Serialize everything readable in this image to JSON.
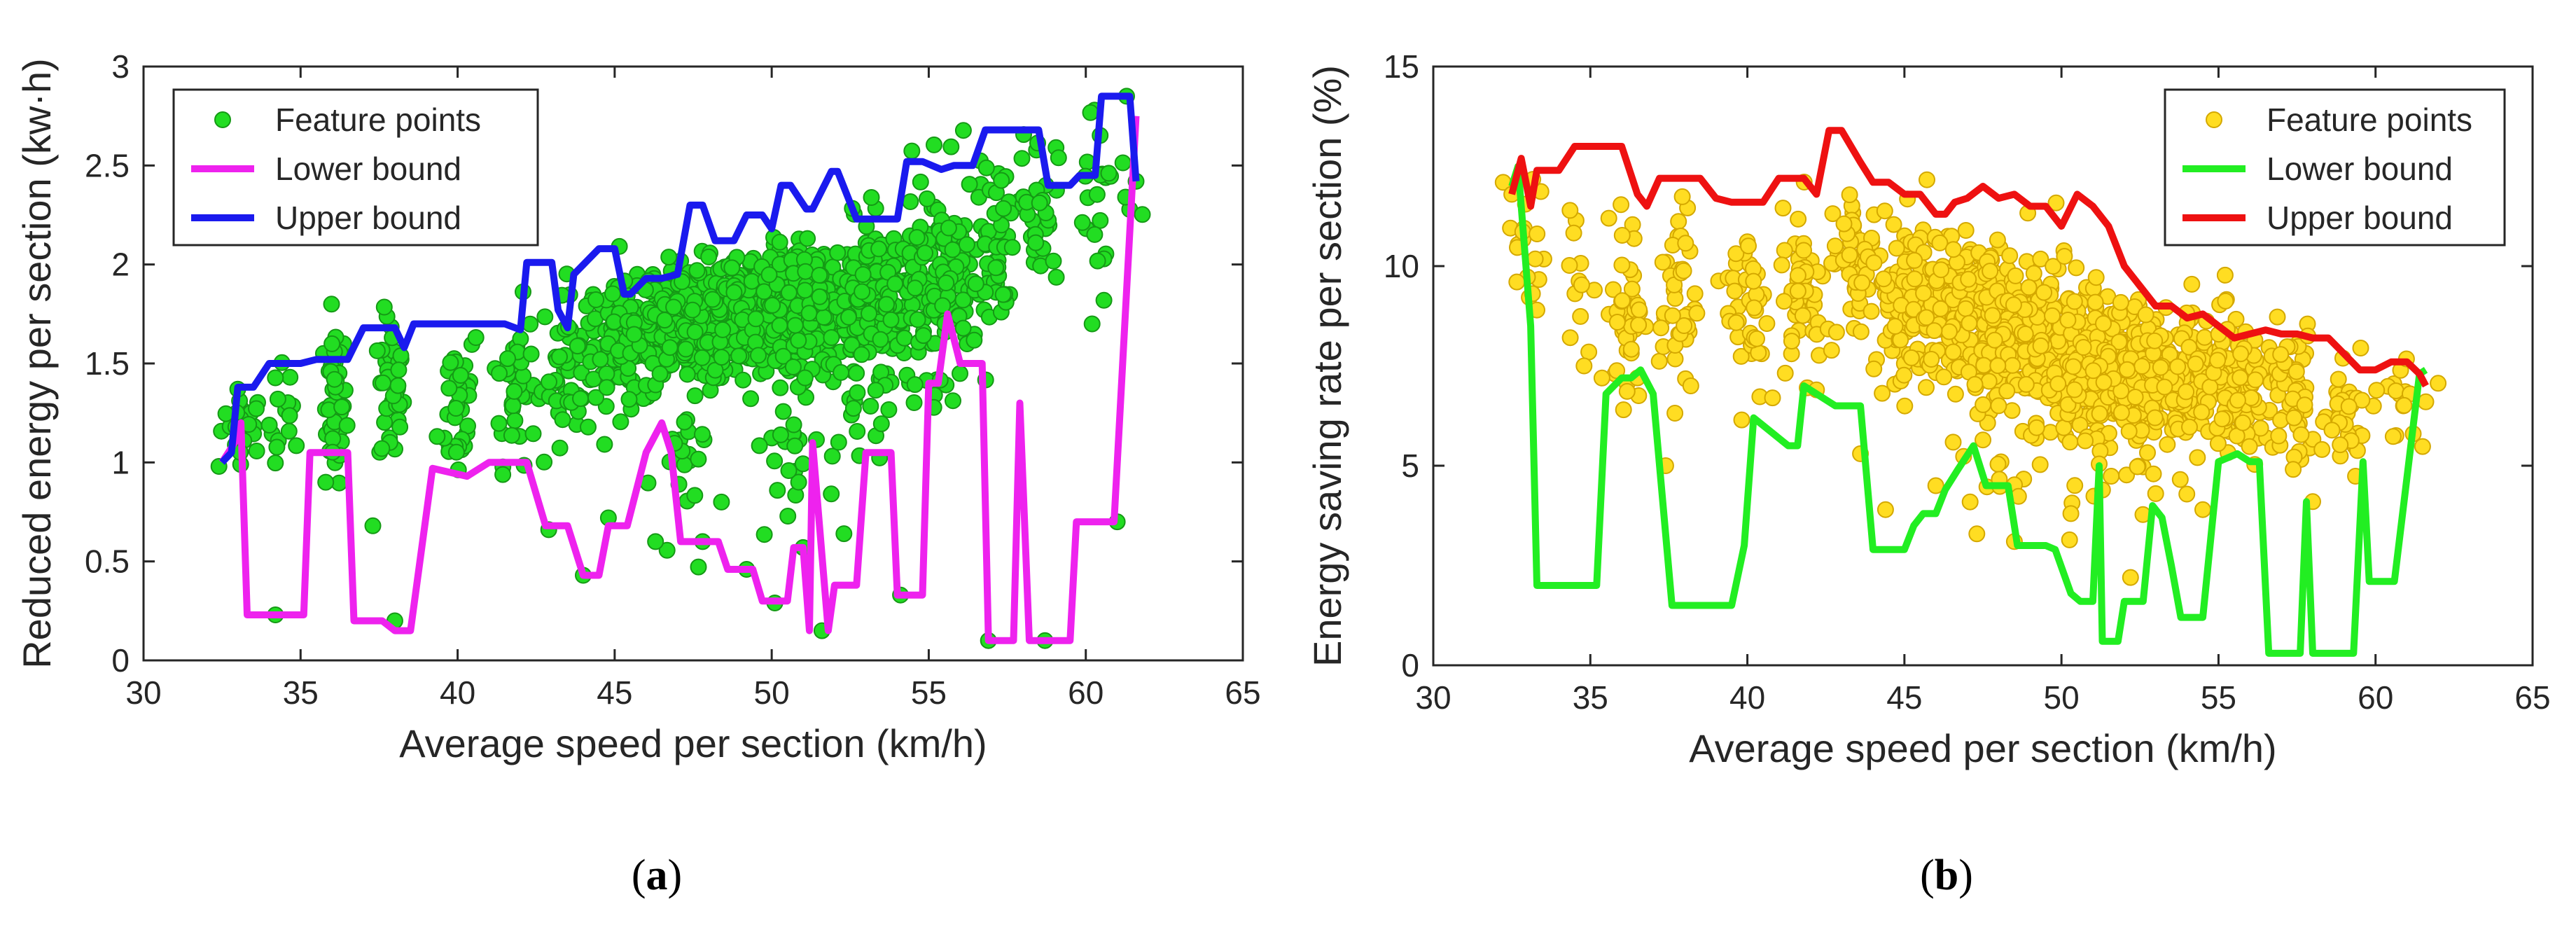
{
  "chart_data": [
    {
      "id": "a",
      "type": "scatter",
      "caption": "a",
      "xlabel": "Average speed per section (km/h)",
      "ylabel": "Reduced energy per section (kw·h)",
      "xlim": [
        30,
        65
      ],
      "ylim": [
        0,
        3
      ],
      "xticks": [
        30,
        35,
        40,
        45,
        50,
        55,
        60,
        65
      ],
      "yticks": [
        0,
        0.5,
        1,
        1.5,
        2,
        2.5,
        3
      ],
      "ytick_labels": [
        "0",
        "0.5",
        "1",
        "1.5",
        "2",
        "2.5",
        "3"
      ],
      "legend_position": "top-left",
      "series": [
        {
          "name": "Feature points",
          "kind": "scatter",
          "color": "#22dd22",
          "edge": "#159915",
          "clusters": [
            {
              "x": 33.2,
              "xs": 0.35,
              "y": 1.2,
              "ys": 0.08,
              "n": 25
            },
            {
              "x": 34.5,
              "xs": 0.25,
              "y": 1.2,
              "ys": 0.15,
              "n": 15
            },
            {
              "x": 36.1,
              "xs": 0.18,
              "y": 1.3,
              "ys": 0.2,
              "n": 45
            },
            {
              "x": 37.9,
              "xs": 0.2,
              "y": 1.35,
              "ys": 0.2,
              "n": 40
            },
            {
              "x": 40.0,
              "xs": 0.3,
              "y": 1.3,
              "ys": 0.2,
              "n": 35
            },
            {
              "x": 41.8,
              "xs": 0.35,
              "y": 1.4,
              "ys": 0.2,
              "n": 40
            },
            {
              "x": 43.5,
              "xs": 0.4,
              "y": 1.5,
              "ys": 0.2,
              "n": 55
            },
            {
              "x": 45.5,
              "xs": 0.8,
              "y": 1.6,
              "ys": 0.15,
              "n": 150
            },
            {
              "x": 47.5,
              "xs": 0.9,
              "y": 1.7,
              "ys": 0.15,
              "n": 230
            },
            {
              "x": 49.5,
              "xs": 0.9,
              "y": 1.75,
              "ys": 0.15,
              "n": 260
            },
            {
              "x": 51.5,
              "xs": 0.9,
              "y": 1.8,
              "ys": 0.15,
              "n": 210
            },
            {
              "x": 53.5,
              "xs": 0.8,
              "y": 1.85,
              "ys": 0.18,
              "n": 170
            },
            {
              "x": 55.5,
              "xs": 0.7,
              "y": 1.95,
              "ys": 0.25,
              "n": 110
            },
            {
              "x": 57.2,
              "xs": 0.3,
              "y": 2.15,
              "ys": 0.2,
              "n": 40
            },
            {
              "x": 58.5,
              "xs": 0.3,
              "y": 2.3,
              "ys": 0.2,
              "n": 30
            },
            {
              "x": 60.5,
              "xs": 0.6,
              "y": 2.4,
              "ys": 0.25,
              "n": 25
            },
            {
              "x": 47.0,
              "xs": 0.4,
              "y": 0.9,
              "ys": 0.2,
              "n": 20
            },
            {
              "x": 50.5,
              "xs": 0.5,
              "y": 1.1,
              "ys": 0.25,
              "n": 25
            },
            {
              "x": 52.8,
              "xs": 0.5,
              "y": 1.2,
              "ys": 0.2,
              "n": 20
            },
            {
              "x": 55.5,
              "xs": 0.5,
              "y": 1.5,
              "ys": 0.2,
              "n": 18
            }
          ],
          "extra_points": [
            [
              32.4,
              0.98
            ],
            [
              34.2,
              0.23
            ],
            [
              37.3,
              0.68
            ],
            [
              38.0,
              0.2
            ],
            [
              44.0,
              0.43
            ],
            [
              44.8,
              0.72
            ],
            [
              47.8,
              0.6
            ],
            [
              48.4,
              0.8
            ],
            [
              49.2,
              0.46
            ],
            [
              50.1,
              0.29
            ],
            [
              51.0,
              0.57
            ],
            [
              51.6,
              0.15
            ],
            [
              52.3,
              0.64
            ],
            [
              54.1,
              0.33
            ],
            [
              56.9,
              0.1
            ],
            [
              58.7,
              0.1
            ],
            [
              61.0,
              0.7
            ],
            [
              61.6,
              2.42
            ],
            [
              61.3,
              2.85
            ],
            [
              60.2,
              1.7
            ],
            [
              33.0,
              1.37
            ],
            [
              35.8,
              0.9
            ],
            [
              42.9,
              0.66
            ],
            [
              46.3,
              0.6
            ]
          ]
        },
        {
          "name": "Lower bound",
          "kind": "line",
          "color": "#ee22ee",
          "x": [
            32.5,
            32.9,
            33.1,
            33.3,
            35.1,
            35.3,
            36.5,
            36.7,
            37.6,
            38.0,
            38.5,
            39.2,
            40.3,
            41.0,
            41.8,
            42.2,
            42.8,
            43.0,
            43.5,
            44.0,
            44.5,
            44.8,
            45.4,
            46.0,
            46.5,
            46.8,
            47.1,
            47.5,
            48.3,
            48.6,
            49.4,
            49.7,
            50.1,
            50.5,
            50.7,
            51.0,
            51.2,
            51.3,
            51.8,
            52.0,
            52.7,
            53.0,
            53.8,
            54.0,
            54.8,
            55.0,
            55.3,
            55.6,
            56.0,
            56.7,
            56.9,
            57.7,
            57.9,
            58.2,
            58.4,
            59.5,
            59.7,
            60.7,
            60.9,
            61.6
          ],
          "y": [
            1.0,
            1.1,
            1.2,
            0.23,
            0.23,
            1.05,
            1.05,
            0.2,
            0.2,
            0.15,
            0.15,
            0.97,
            0.93,
            1.0,
            1.0,
            1.0,
            0.68,
            0.68,
            0.68,
            0.43,
            0.43,
            0.68,
            0.68,
            1.05,
            1.2,
            1.05,
            0.6,
            0.6,
            0.6,
            0.46,
            0.46,
            0.3,
            0.3,
            0.3,
            0.57,
            0.57,
            0.15,
            1.1,
            0.15,
            0.38,
            0.38,
            1.05,
            1.05,
            0.33,
            0.33,
            1.4,
            1.4,
            1.75,
            1.5,
            1.5,
            0.1,
            0.1,
            1.3,
            0.1,
            0.1,
            0.1,
            0.7,
            0.7,
            0.7,
            2.75
          ]
        },
        {
          "name": "Upper bound",
          "kind": "line",
          "color": "#1a1aee",
          "x": [
            32.5,
            32.8,
            33.0,
            33.5,
            34.0,
            35.0,
            35.5,
            36.0,
            36.5,
            37.0,
            38.0,
            38.3,
            38.6,
            40.0,
            40.5,
            41.5,
            42.0,
            42.2,
            43.0,
            43.2,
            43.5,
            43.7,
            44.5,
            45.0,
            45.3,
            45.5,
            46.0,
            46.5,
            47.0,
            47.4,
            47.8,
            48.2,
            48.8,
            49.2,
            49.7,
            50.0,
            50.3,
            50.6,
            51.1,
            51.3,
            51.9,
            52.1,
            52.7,
            53.0,
            54.0,
            54.3,
            54.8,
            55.4,
            55.8,
            56.4,
            56.8,
            57.4,
            57.8,
            58.5,
            58.8,
            59.5,
            59.8,
            60.3,
            60.5,
            61.2,
            61.4,
            61.6
          ],
          "y": [
            1.0,
            1.05,
            1.38,
            1.38,
            1.5,
            1.5,
            1.52,
            1.52,
            1.52,
            1.68,
            1.68,
            1.58,
            1.7,
            1.7,
            1.7,
            1.7,
            1.67,
            2.01,
            2.01,
            1.77,
            1.68,
            1.95,
            2.08,
            2.08,
            1.85,
            1.85,
            1.93,
            1.93,
            1.95,
            2.3,
            2.3,
            2.12,
            2.12,
            2.25,
            2.25,
            2.18,
            2.4,
            2.4,
            2.28,
            2.28,
            2.47,
            2.47,
            2.23,
            2.23,
            2.23,
            2.52,
            2.52,
            2.48,
            2.5,
            2.5,
            2.68,
            2.68,
            2.68,
            2.68,
            2.4,
            2.4,
            2.45,
            2.45,
            2.85,
            2.85,
            2.85,
            2.42
          ]
        }
      ]
    },
    {
      "id": "b",
      "type": "scatter",
      "caption": "b",
      "xlabel": "Average speed per section (km/h)",
      "ylabel": "Energy saving rate per section (%)",
      "xlim": [
        30,
        65
      ],
      "ylim": [
        0,
        15
      ],
      "xticks": [
        30,
        35,
        40,
        45,
        50,
        55,
        60,
        65
      ],
      "yticks": [
        0,
        5,
        10,
        15
      ],
      "ytick_labels": [
        "0",
        "5",
        "10",
        "15"
      ],
      "legend_position": "top-right",
      "series": [
        {
          "name": "Feature points",
          "kind": "scatter",
          "color": "#ffdd22",
          "edge": "#d4a800",
          "clusters": [
            {
              "x": 33.0,
              "xs": 0.3,
              "y": 10.5,
              "ys": 1.0,
              "n": 18
            },
            {
              "x": 34.5,
              "xs": 0.3,
              "y": 9.5,
              "ys": 1.2,
              "n": 12
            },
            {
              "x": 36.2,
              "xs": 0.25,
              "y": 9.0,
              "ys": 1.2,
              "n": 45
            },
            {
              "x": 37.8,
              "xs": 0.3,
              "y": 9.2,
              "ys": 1.2,
              "n": 40
            },
            {
              "x": 40.0,
              "xs": 0.35,
              "y": 9.0,
              "ys": 1.2,
              "n": 40
            },
            {
              "x": 41.8,
              "xs": 0.35,
              "y": 9.5,
              "ys": 1.0,
              "n": 45
            },
            {
              "x": 43.5,
              "xs": 0.5,
              "y": 10.0,
              "ys": 1.0,
              "n": 55
            },
            {
              "x": 45.5,
              "xs": 0.8,
              "y": 9.2,
              "ys": 1.0,
              "n": 140
            },
            {
              "x": 47.5,
              "xs": 0.9,
              "y": 8.6,
              "ys": 1.0,
              "n": 220
            },
            {
              "x": 49.5,
              "xs": 0.9,
              "y": 8.0,
              "ys": 1.0,
              "n": 250
            },
            {
              "x": 51.5,
              "xs": 0.9,
              "y": 7.5,
              "ys": 0.9,
              "n": 210
            },
            {
              "x": 53.5,
              "xs": 0.8,
              "y": 7.1,
              "ys": 0.9,
              "n": 170
            },
            {
              "x": 55.5,
              "xs": 0.7,
              "y": 6.8,
              "ys": 0.9,
              "n": 120
            },
            {
              "x": 57.3,
              "xs": 0.4,
              "y": 6.8,
              "ys": 0.9,
              "n": 50
            },
            {
              "x": 59.0,
              "xs": 0.5,
              "y": 6.8,
              "ys": 0.9,
              "n": 35
            },
            {
              "x": 60.8,
              "xs": 0.4,
              "y": 6.7,
              "ys": 0.6,
              "n": 15
            },
            {
              "x": 47.5,
              "xs": 0.5,
              "y": 5.0,
              "ys": 0.8,
              "n": 15
            },
            {
              "x": 51.0,
              "xs": 0.5,
              "y": 5.5,
              "ys": 1.0,
              "n": 15
            }
          ],
          "extra_points": [
            [
              32.5,
              11.8
            ],
            [
              33.3,
              8.9
            ],
            [
              34.8,
              7.5
            ],
            [
              36.5,
              7.2
            ],
            [
              37.4,
              5.0
            ],
            [
              38.2,
              7.0
            ],
            [
              44.4,
              3.9
            ],
            [
              43.6,
              5.3
            ],
            [
              46.0,
              4.5
            ],
            [
              48.5,
              3.1
            ],
            [
              50.3,
              3.8
            ],
            [
              52.2,
              2.2
            ],
            [
              53.0,
              4.3
            ],
            [
              54.5,
              3.9
            ],
            [
              58.0,
              4.1
            ],
            [
              61.2,
              5.8
            ],
            [
              61.6,
              6.6
            ],
            [
              40.8,
              6.7
            ],
            [
              42.2,
              6.9
            ]
          ]
        },
        {
          "name": "Lower bound",
          "kind": "line",
          "color": "#22ee22",
          "x": [
            32.5,
            32.7,
            32.9,
            33.1,
            33.3,
            35.2,
            35.5,
            36.0,
            36.3,
            36.6,
            37.0,
            37.6,
            38.6,
            39.5,
            39.9,
            40.2,
            41.3,
            41.6,
            41.8,
            42.8,
            43.3,
            43.6,
            44.0,
            44.5,
            45.0,
            45.3,
            45.6,
            46.0,
            46.3,
            46.7,
            47.2,
            47.6,
            48.3,
            48.6,
            49.5,
            49.8,
            50.3,
            50.6,
            50.8,
            51.0,
            51.2,
            51.3,
            51.8,
            52.0,
            52.6,
            52.9,
            53.2,
            53.5,
            53.8,
            54.0,
            54.5,
            55.0,
            55.6,
            56.0,
            56.3,
            56.6,
            57.6,
            57.8,
            58.0,
            58.3,
            59.3,
            59.6,
            59.8,
            60.0,
            60.6,
            61.4,
            61.6
          ],
          "y": [
            12.0,
            12.5,
            10.5,
            8.5,
            2.0,
            2.0,
            6.8,
            7.2,
            7.2,
            7.4,
            6.8,
            1.5,
            1.5,
            1.5,
            3.0,
            6.2,
            5.5,
            5.5,
            7.0,
            6.5,
            6.5,
            6.5,
            2.9,
            2.9,
            2.9,
            3.5,
            3.8,
            3.8,
            4.4,
            4.9,
            5.5,
            4.5,
            4.5,
            3.0,
            3.0,
            2.9,
            1.8,
            1.6,
            1.6,
            1.6,
            5.0,
            0.6,
            0.6,
            1.6,
            1.6,
            4.0,
            3.7,
            2.5,
            1.2,
            1.2,
            1.2,
            5.1,
            5.3,
            5.1,
            5.1,
            0.3,
            0.3,
            4.1,
            0.3,
            0.3,
            0.3,
            5.1,
            2.1,
            2.1,
            2.1,
            7.3,
            7.4
          ]
        },
        {
          "name": "Upper bound",
          "kind": "line",
          "color": "#ee1111",
          "x": [
            32.5,
            32.8,
            33.1,
            33.3,
            34.0,
            34.5,
            35.0,
            36.0,
            36.5,
            36.8,
            37.2,
            37.6,
            38.5,
            39.0,
            39.5,
            40.0,
            40.5,
            41.0,
            41.5,
            41.8,
            42.2,
            42.6,
            43.0,
            43.6,
            44.0,
            44.5,
            45.0,
            45.5,
            46.0,
            46.3,
            46.6,
            47.0,
            47.5,
            48.0,
            48.5,
            49.0,
            49.5,
            50.0,
            50.5,
            51.0,
            51.5,
            52.0,
            52.5,
            53.0,
            53.5,
            54.0,
            54.5,
            55.0,
            55.5,
            56.0,
            56.5,
            57.0,
            57.5,
            58.0,
            58.5,
            59.0,
            59.5,
            60.0,
            60.5,
            61.0,
            61.4,
            61.6
          ],
          "y": [
            11.8,
            12.7,
            11.5,
            12.4,
            12.4,
            13.0,
            13.0,
            13.0,
            11.8,
            11.5,
            12.2,
            12.2,
            12.2,
            11.7,
            11.6,
            11.6,
            11.6,
            12.2,
            12.2,
            12.2,
            11.8,
            13.4,
            13.4,
            12.6,
            12.1,
            12.1,
            11.8,
            11.8,
            11.3,
            11.3,
            11.6,
            11.7,
            12.0,
            11.7,
            11.8,
            11.5,
            11.5,
            11.0,
            11.8,
            11.5,
            11.0,
            10.0,
            9.5,
            9.0,
            9.0,
            8.7,
            8.8,
            8.5,
            8.2,
            8.3,
            8.4,
            8.3,
            8.3,
            8.2,
            8.2,
            7.8,
            7.4,
            7.4,
            7.6,
            7.6,
            7.3,
            7.0
          ]
        }
      ]
    }
  ]
}
